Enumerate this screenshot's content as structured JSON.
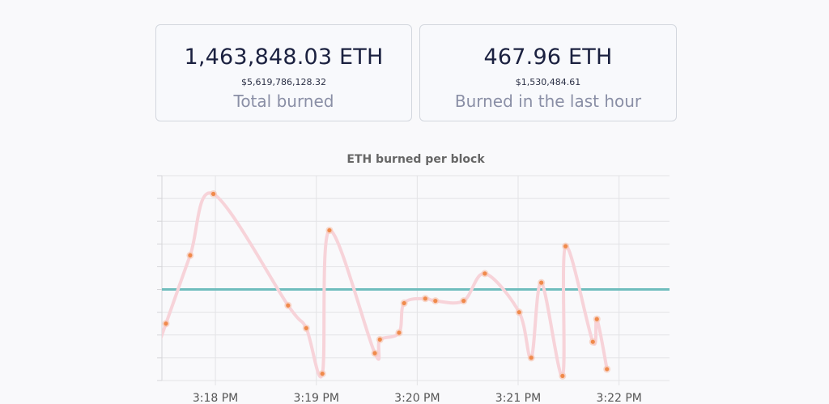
{
  "stats": {
    "total": {
      "value": "1,463,848.03 ETH",
      "usd": "$5,619,786,128.32",
      "label": "Total burned"
    },
    "hour": {
      "value": "467.96 ETH",
      "usd": "$1,530,484.61",
      "label": "Burned in the last hour"
    }
  },
  "chart_data": {
    "type": "line",
    "title": "ETH burned per block",
    "x_tick_labels": [
      "3:18 PM",
      "3:19 PM",
      "3:20 PM",
      "3:21 PM",
      "3:22 PM"
    ],
    "x_tick_minutes": [
      18,
      19,
      20,
      21,
      22
    ],
    "xlim_minutes": [
      17.47,
      22.5
    ],
    "ylim": [
      0,
      9
    ],
    "y_ticks": [
      0,
      1,
      2,
      3,
      4,
      5,
      6,
      7,
      8,
      9
    ],
    "y_tick_labels_shown": false,
    "grid": true,
    "reference_line": {
      "y": 4.0,
      "color": "#6fbdbd"
    },
    "series": [
      {
        "line_color": "#f7d3d9",
        "point_color": "#f08a4b",
        "points": [
          {
            "x": 17.51,
            "y": 2.5
          },
          {
            "x": 17.75,
            "y": 5.5
          },
          {
            "x": 17.98,
            "y": 8.2
          },
          {
            "x": 18.72,
            "y": 3.3
          },
          {
            "x": 18.9,
            "y": 2.3
          },
          {
            "x": 19.06,
            "y": 0.3
          },
          {
            "x": 19.13,
            "y": 6.6
          },
          {
            "x": 19.58,
            "y": 1.2
          },
          {
            "x": 19.63,
            "y": 1.8
          },
          {
            "x": 19.82,
            "y": 2.1
          },
          {
            "x": 19.87,
            "y": 3.4
          },
          {
            "x": 20.08,
            "y": 3.6
          },
          {
            "x": 20.18,
            "y": 3.5
          },
          {
            "x": 20.46,
            "y": 3.5
          },
          {
            "x": 20.67,
            "y": 4.7
          },
          {
            "x": 21.01,
            "y": 3.0
          },
          {
            "x": 21.13,
            "y": 1.0
          },
          {
            "x": 21.23,
            "y": 4.3
          },
          {
            "x": 21.44,
            "y": 0.2
          },
          {
            "x": 21.47,
            "y": 5.9
          },
          {
            "x": 21.74,
            "y": 1.7
          },
          {
            "x": 21.78,
            "y": 2.7
          },
          {
            "x": 21.88,
            "y": 0.5
          }
        ]
      }
    ]
  }
}
